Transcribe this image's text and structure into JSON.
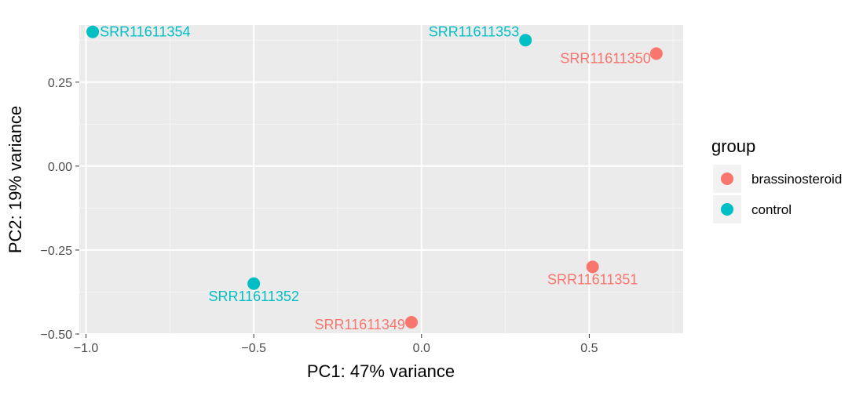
{
  "chart_data": {
    "type": "scatter",
    "xlabel": "PC1: 47% variance",
    "ylabel": "PC2: 19% variance",
    "xlim": [
      -1.02,
      0.78
    ],
    "ylim": [
      -0.5,
      0.42
    ],
    "x_ticks": [
      -1.0,
      -0.5,
      0.0,
      0.5
    ],
    "x_tick_labels": [
      "−1.0",
      "−0.5",
      "0.0",
      "0.5"
    ],
    "y_ticks": [
      0.25,
      0.0,
      -0.25,
      -0.5
    ],
    "y_tick_labels": [
      "0.25",
      "0.00",
      "−0.25",
      "−0.50"
    ],
    "grid": true,
    "legend": {
      "title": "group",
      "position": "right",
      "entries": [
        {
          "name": "brassinosteroid",
          "color": "#F8766D"
        },
        {
          "name": "control",
          "color": "#00BFC4"
        }
      ]
    },
    "points": [
      {
        "label": "SRR11611354",
        "group": "control",
        "x": -0.98,
        "y": 0.4,
        "label_pos": "right"
      },
      {
        "label": "SRR11611353",
        "group": "control",
        "x": 0.31,
        "y": 0.375,
        "label_pos": "left-up"
      },
      {
        "label": "SRR11611350",
        "group": "brassinosteroid",
        "x": 0.7,
        "y": 0.335,
        "label_pos": "left-down"
      },
      {
        "label": "SRR11611352",
        "group": "control",
        "x": -0.5,
        "y": -0.35,
        "label_pos": "below"
      },
      {
        "label": "SRR11611351",
        "group": "brassinosteroid",
        "x": 0.51,
        "y": -0.3,
        "label_pos": "below"
      },
      {
        "label": "SRR11611349",
        "group": "brassinosteroid",
        "x": -0.03,
        "y": -0.465,
        "label_pos": "left"
      }
    ]
  }
}
